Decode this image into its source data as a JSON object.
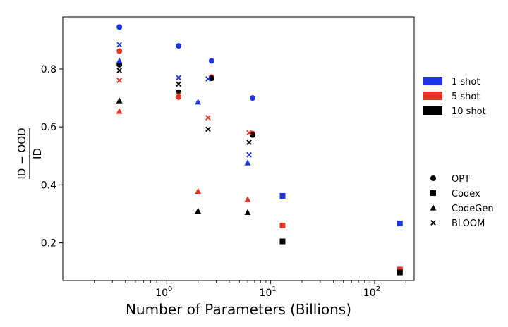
{
  "chart_data": {
    "type": "scatter",
    "xlabel": "Number of Parameters (Billions)",
    "ylabel": {
      "numerator": "ID − OOD",
      "denominator": "ID"
    },
    "xscale": "log",
    "xlim": [
      0.1,
      240
    ],
    "ylim": [
      0.07,
      0.98
    ],
    "xticks": [
      {
        "value": 1,
        "label_base": "10",
        "label_exp": "0"
      },
      {
        "value": 10,
        "label_base": "10",
        "label_exp": "1"
      },
      {
        "value": 100,
        "label_base": "10",
        "label_exp": "2"
      }
    ],
    "yticks": [
      0.2,
      0.4,
      0.6,
      0.8
    ],
    "grid": false,
    "shot_legend": {
      "placement": "right-upper",
      "entries": [
        {
          "label": "1 shot",
          "color": "#1f33e6"
        },
        {
          "label": "5 shot",
          "color": "#e33426"
        },
        {
          "label": "10 shot",
          "color": "#000000"
        }
      ]
    },
    "model_legend": {
      "placement": "right-lower",
      "entries": [
        {
          "label": "OPT",
          "marker": "circle"
        },
        {
          "label": "Codex",
          "marker": "square"
        },
        {
          "label": "CodeGen",
          "marker": "triangle"
        },
        {
          "label": "BLOOM",
          "marker": "x"
        }
      ]
    },
    "series": [
      {
        "model": "OPT",
        "shot": "1 shot",
        "color": "#1f33e6",
        "marker": "circle",
        "points": [
          [
            0.35,
            0.945
          ],
          [
            1.3,
            0.88
          ],
          [
            2.7,
            0.828
          ],
          [
            6.7,
            0.7
          ]
        ]
      },
      {
        "model": "OPT",
        "shot": "5 shot",
        "color": "#e33426",
        "marker": "circle",
        "points": [
          [
            0.35,
            0.862
          ],
          [
            1.3,
            0.703
          ],
          [
            2.7,
            0.772
          ],
          [
            6.7,
            0.577
          ]
        ]
      },
      {
        "model": "OPT",
        "shot": "10 shot",
        "color": "#000000",
        "marker": "circle",
        "points": [
          [
            0.35,
            0.815
          ],
          [
            1.3,
            0.72
          ],
          [
            2.7,
            0.768
          ],
          [
            6.7,
            0.572
          ]
        ]
      },
      {
        "model": "Codex",
        "shot": "1 shot",
        "color": "#1f33e6",
        "marker": "square",
        "points": [
          [
            13,
            0.362
          ],
          [
            175,
            0.267
          ]
        ]
      },
      {
        "model": "Codex",
        "shot": "5 shot",
        "color": "#e33426",
        "marker": "square",
        "points": [
          [
            13,
            0.26
          ],
          [
            175,
            0.108
          ]
        ]
      },
      {
        "model": "Codex",
        "shot": "10 shot",
        "color": "#000000",
        "marker": "square",
        "points": [
          [
            13,
            0.205
          ],
          [
            175,
            0.098
          ]
        ]
      },
      {
        "model": "CodeGen",
        "shot": "1 shot",
        "color": "#1f33e6",
        "marker": "triangle",
        "points": [
          [
            0.35,
            0.828
          ],
          [
            2.0,
            0.686
          ],
          [
            6.0,
            0.476
          ]
        ]
      },
      {
        "model": "CodeGen",
        "shot": "5 shot",
        "color": "#e33426",
        "marker": "triangle",
        "points": [
          [
            0.35,
            0.654
          ],
          [
            2.0,
            0.378
          ],
          [
            6.0,
            0.35
          ]
        ]
      },
      {
        "model": "CodeGen",
        "shot": "10 shot",
        "color": "#000000",
        "marker": "triangle",
        "points": [
          [
            0.35,
            0.69
          ],
          [
            2.0,
            0.31
          ],
          [
            6.0,
            0.305
          ]
        ]
      },
      {
        "model": "BLOOM",
        "shot": "1 shot",
        "color": "#1f33e6",
        "marker": "x",
        "points": [
          [
            0.35,
            0.884
          ],
          [
            1.3,
            0.77
          ],
          [
            2.5,
            0.766
          ],
          [
            6.2,
            0.504
          ]
        ]
      },
      {
        "model": "BLOOM",
        "shot": "5 shot",
        "color": "#e33426",
        "marker": "x",
        "points": [
          [
            0.35,
            0.761
          ],
          [
            1.3,
            0.71
          ],
          [
            2.5,
            0.632
          ],
          [
            6.2,
            0.58
          ]
        ]
      },
      {
        "model": "BLOOM",
        "shot": "10 shot",
        "color": "#000000",
        "marker": "x",
        "points": [
          [
            0.35,
            0.795
          ],
          [
            1.3,
            0.748
          ],
          [
            2.5,
            0.592
          ],
          [
            6.2,
            0.547
          ]
        ]
      }
    ]
  }
}
